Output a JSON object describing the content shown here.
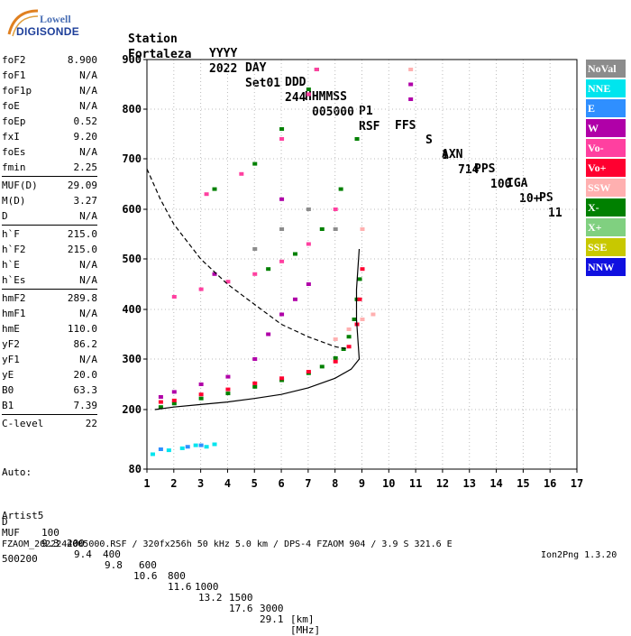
{
  "logo": {
    "line1": "Lowell",
    "line2": "DIGISONDE"
  },
  "header": {
    "labels": [
      "Station",
      "YYYY",
      "DAY",
      "DDD",
      "HHMMSS",
      "P1",
      "FFS",
      "S",
      "AXN",
      "PPS",
      "IGA",
      "PS"
    ],
    "values": [
      "Fortaleza",
      "2022",
      "Set01",
      "244",
      "005000",
      "RSF",
      "",
      "1",
      "714",
      "100",
      "10+",
      "11"
    ]
  },
  "params": [
    [
      {
        "k": "foF2",
        "v": "8.900"
      },
      {
        "k": "foF1",
        "v": "N/A"
      },
      {
        "k": "foF1p",
        "v": "N/A"
      },
      {
        "k": "foE",
        "v": "N/A"
      },
      {
        "k": "foEp",
        "v": "0.52"
      },
      {
        "k": "fxI",
        "v": "9.20"
      },
      {
        "k": "foEs",
        "v": "N/A"
      },
      {
        "k": "fmin",
        "v": "2.25"
      }
    ],
    [
      {
        "k": "MUF(D)",
        "v": "29.09"
      },
      {
        "k": "M(D)",
        "v": "3.27"
      },
      {
        "k": "D",
        "v": "N/A"
      }
    ],
    [
      {
        "k": "h`F",
        "v": "215.0"
      },
      {
        "k": "h`F2",
        "v": "215.0"
      },
      {
        "k": "h`E",
        "v": "N/A"
      },
      {
        "k": "h`Es",
        "v": "N/A"
      }
    ],
    [
      {
        "k": "hmF2",
        "v": "289.8"
      },
      {
        "k": "hmF1",
        "v": "N/A"
      },
      {
        "k": "hmE",
        "v": "110.0"
      },
      {
        "k": "yF2",
        "v": "86.2"
      },
      {
        "k": "yF1",
        "v": "N/A"
      },
      {
        "k": "yE",
        "v": "20.0"
      },
      {
        "k": "B0",
        "v": "63.3"
      },
      {
        "k": "B1",
        "v": "7.39"
      }
    ],
    [
      {
        "k": "C-level",
        "v": "22"
      }
    ]
  ],
  "auto": [
    "Auto:",
    "Artist5",
    "500200"
  ],
  "legend": [
    {
      "label": "NoVal",
      "color": "#8c8c8c"
    },
    {
      "label": "NNE",
      "color": "#00e5ee"
    },
    {
      "label": "E",
      "color": "#2f8fff"
    },
    {
      "label": "W",
      "color": "#b000a8"
    },
    {
      "label": "Vo-",
      "color": "#ff40a0"
    },
    {
      "label": "Vo+",
      "color": "#ff0030"
    },
    {
      "label": "SSW",
      "color": "#ffb0b0"
    },
    {
      "label": "X-",
      "color": "#008000"
    },
    {
      "label": "X+",
      "color": "#80d080"
    },
    {
      "label": "SSE",
      "color": "#c8c800"
    },
    {
      "label": "NNW",
      "color": "#1010e0"
    }
  ],
  "footer": {
    "d_label": "D",
    "d_values": [
      "100",
      "200",
      "400",
      "600",
      "800",
      "1000",
      "1500",
      "3000",
      "[km]"
    ],
    "muf_label": "MUF",
    "muf_values": [
      "9.3",
      "9.4",
      "9.8",
      "10.6",
      "11.6",
      "13.2",
      "17.6",
      "29.1",
      "[MHz]"
    ],
    "file_line": "FZAOM_2022244005000.RSF / 320fx256h 50 kHz 5.0 km / DPS-4 FZAOM 904 / 3.9 S 321.6 E",
    "version": "Ion2Png 1.3.20"
  },
  "chart_data": {
    "type": "scatter",
    "title": "",
    "xlabel": "",
    "ylabel": "",
    "xlim": [
      1,
      17
    ],
    "ylim": [
      80,
      900
    ],
    "xticks": [
      1,
      2,
      3,
      4,
      5,
      6,
      7,
      8,
      9,
      10,
      11,
      12,
      13,
      14,
      15,
      16,
      17
    ],
    "yticks": [
      80,
      200,
      300,
      400,
      500,
      600,
      700,
      800,
      900
    ],
    "grid": true,
    "legend_position": "right",
    "series": [
      {
        "name": "X-",
        "points": [
          [
            1.5,
            205
          ],
          [
            2,
            212
          ],
          [
            3,
            222
          ],
          [
            4,
            232
          ],
          [
            5,
            245
          ],
          [
            6,
            258
          ],
          [
            7,
            272
          ],
          [
            7.5,
            285
          ],
          [
            8,
            302
          ],
          [
            8.3,
            320
          ],
          [
            8.5,
            345
          ],
          [
            8.7,
            380
          ],
          [
            8.8,
            420
          ],
          [
            8.9,
            460
          ],
          [
            5.5,
            480
          ],
          [
            6.5,
            510
          ],
          [
            7.5,
            560
          ],
          [
            8.2,
            640
          ],
          [
            8.8,
            740
          ],
          [
            3.5,
            640
          ],
          [
            5,
            690
          ],
          [
            6,
            760
          ],
          [
            7,
            840
          ],
          [
            7.3,
            880
          ]
        ]
      },
      {
        "name": "Vo+",
        "points": [
          [
            1.5,
            215
          ],
          [
            2,
            218
          ],
          [
            3,
            230
          ],
          [
            4,
            240
          ],
          [
            5,
            252
          ],
          [
            6,
            262
          ],
          [
            7,
            275
          ],
          [
            8,
            295
          ],
          [
            8.5,
            325
          ],
          [
            8.8,
            370
          ],
          [
            8.9,
            420
          ],
          [
            9,
            480
          ]
        ]
      },
      {
        "name": "Vo-",
        "points": [
          [
            2,
            425
          ],
          [
            3,
            440
          ],
          [
            4,
            455
          ],
          [
            5,
            470
          ],
          [
            6,
            495
          ],
          [
            7,
            530
          ],
          [
            8,
            600
          ],
          [
            3.2,
            630
          ],
          [
            4.5,
            670
          ],
          [
            6,
            740
          ],
          [
            7,
            830
          ],
          [
            7.3,
            880
          ]
        ]
      },
      {
        "name": "W",
        "points": [
          [
            1.5,
            225
          ],
          [
            2,
            235
          ],
          [
            3,
            250
          ],
          [
            4,
            265
          ],
          [
            5,
            300
          ],
          [
            5.5,
            350
          ],
          [
            6,
            390
          ],
          [
            6.5,
            420
          ],
          [
            7,
            450
          ],
          [
            3.5,
            470
          ],
          [
            6,
            620
          ],
          [
            10.8,
            850
          ],
          [
            10.8,
            820
          ]
        ]
      },
      {
        "name": "NNE",
        "points": [
          [
            1.2,
            110
          ],
          [
            1.8,
            118
          ],
          [
            2.3,
            122
          ],
          [
            2.8,
            128
          ],
          [
            3.2,
            125
          ],
          [
            3.5,
            130
          ]
        ]
      },
      {
        "name": "E",
        "points": [
          [
            1.5,
            120
          ],
          [
            2.5,
            125
          ],
          [
            3,
            128
          ]
        ]
      },
      {
        "name": "SSW",
        "points": [
          [
            8,
            340
          ],
          [
            8.5,
            360
          ],
          [
            9,
            380
          ],
          [
            9.4,
            390
          ],
          [
            9,
            560
          ],
          [
            10.8,
            880
          ]
        ]
      },
      {
        "name": "NoVal",
        "points": [
          [
            5,
            520
          ],
          [
            6,
            560
          ],
          [
            7,
            600
          ],
          [
            8,
            560
          ]
        ]
      }
    ],
    "curves": [
      {
        "name": "profile",
        "style": "solid",
        "points": [
          [
            1.3,
            200
          ],
          [
            2,
            205
          ],
          [
            3,
            210
          ],
          [
            4,
            215
          ],
          [
            5,
            222
          ],
          [
            6,
            230
          ],
          [
            7,
            243
          ],
          [
            8,
            262
          ],
          [
            8.6,
            280
          ],
          [
            8.9,
            300
          ],
          [
            8.8,
            380
          ],
          [
            8.8,
            440
          ],
          [
            8.9,
            520
          ]
        ]
      },
      {
        "name": "muf",
        "style": "dashed",
        "points": [
          [
            1,
            680
          ],
          [
            1.5,
            620
          ],
          [
            2,
            570
          ],
          [
            3,
            500
          ],
          [
            4,
            450
          ],
          [
            5,
            410
          ],
          [
            6,
            370
          ],
          [
            7,
            345
          ],
          [
            8,
            325
          ],
          [
            8.5,
            320
          ]
        ]
      }
    ]
  }
}
